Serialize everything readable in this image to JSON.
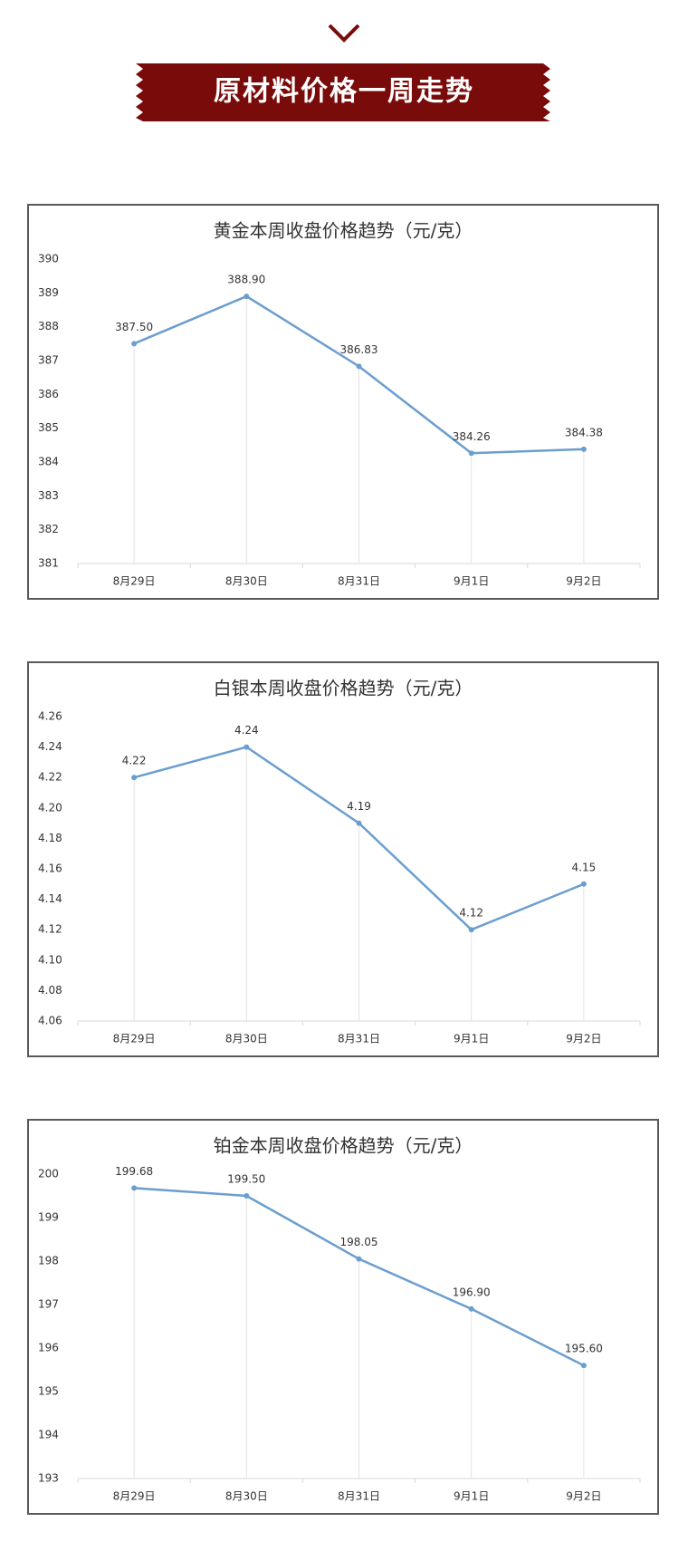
{
  "header": {
    "title": "原材料价格一周走势"
  },
  "chart_data": [
    {
      "type": "line",
      "title": "黄金本周收盘价格趋势（元/克）",
      "categories": [
        "8月29日",
        "8月30日",
        "8月31日",
        "9月1日",
        "9月2日"
      ],
      "values": [
        387.5,
        388.9,
        386.83,
        384.26,
        384.38
      ],
      "value_labels": [
        "387.50",
        "388.90",
        "386.83",
        "384.26",
        "384.38"
      ],
      "color": "#6b9ecf",
      "ylim": [
        381,
        390
      ],
      "yticks": [
        381,
        382,
        383,
        384,
        385,
        386,
        387,
        388,
        389,
        390
      ]
    },
    {
      "type": "line",
      "title": "白银本周收盘价格趋势（元/克）",
      "categories": [
        "8月29日",
        "8月30日",
        "8月31日",
        "9月1日",
        "9月2日"
      ],
      "values": [
        4.22,
        4.24,
        4.19,
        4.12,
        4.15
      ],
      "color": "#6b9ecf",
      "ylim": [
        4.06,
        4.26
      ],
      "yticks": [
        4.06,
        4.08,
        {
          "value": 4.1,
          "label": "4.10"
        },
        4.12,
        4.14,
        4.16,
        4.18,
        {
          "value": 4.2,
          "label": "4.20"
        },
        4.22,
        4.24,
        4.26
      ]
    },
    {
      "type": "line",
      "title": "铂金本周收盘价格趋势（元/克）",
      "categories": [
        "8月29日",
        "8月30日",
        "8月31日",
        "9月1日",
        "9月2日"
      ],
      "values": [
        199.68,
        199.5,
        198.05,
        196.9,
        195.6
      ],
      "value_labels": [
        "199.68",
        "199.50",
        "198.05",
        "196.90",
        "195.60"
      ],
      "color": "#6b9ecf",
      "ylim": [
        193,
        200
      ],
      "yticks": [
        193,
        194,
        195,
        196,
        197,
        198,
        199,
        200
      ]
    }
  ]
}
